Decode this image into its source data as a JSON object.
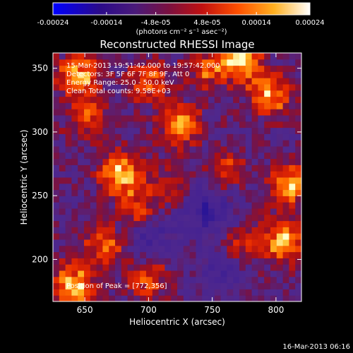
{
  "chart_data": {
    "type": "heatmap",
    "title": "Reconstructed RHESSI Image",
    "xlabel": "Heliocentric X (arcsec)",
    "ylabel": "Heliocentric Y (arcsec)",
    "xlim": [
      625,
      820
    ],
    "ylim": [
      167,
      362
    ],
    "x_ticks": [
      650,
      700,
      750,
      800
    ],
    "y_ticks": [
      200,
      250,
      300,
      350
    ],
    "colorbar": {
      "range": [
        -0.00024,
        0.00024
      ],
      "tick_values": [
        -0.00024,
        -0.00014,
        -4.8e-05,
        4.8e-05,
        0.00014,
        0.00024
      ],
      "tick_labels": [
        "-0.00024",
        "-0.00014",
        "-4.8e-05",
        "4.8e-05",
        "0.00014",
        "0.00024"
      ],
      "units_label": "(photons cm⁻² s⁻¹ asec⁻²)"
    },
    "info_lines": [
      "15-Mar-2013 19:51:42.000 to 19:57:42.000",
      "Detectors: 3F 5F 6F 7F 8F 9F, Att 0",
      "Energy Range: 25.0 - 50.0 keV",
      "Clean    Total counts: 9.58E+03"
    ],
    "peak_label": "Position of Peak = [772,356]",
    "peak": [
      772,
      356
    ],
    "bright_regions": [
      {
        "x": 645,
        "y": 345,
        "level": 0.85
      },
      {
        "x": 652,
        "y": 310,
        "level": 0.55
      },
      {
        "x": 700,
        "y": 340,
        "level": 0.6
      },
      {
        "x": 725,
        "y": 305,
        "level": 0.75
      },
      {
        "x": 678,
        "y": 268,
        "level": 0.9
      },
      {
        "x": 690,
        "y": 240,
        "level": 0.55
      },
      {
        "x": 665,
        "y": 210,
        "level": 0.6
      },
      {
        "x": 640,
        "y": 180,
        "level": 0.95
      },
      {
        "x": 700,
        "y": 185,
        "level": 0.5
      },
      {
        "x": 772,
        "y": 356,
        "level": 1.0
      },
      {
        "x": 795,
        "y": 330,
        "level": 0.8
      },
      {
        "x": 812,
        "y": 260,
        "level": 0.85
      },
      {
        "x": 805,
        "y": 215,
        "level": 0.9
      },
      {
        "x": 770,
        "y": 210,
        "level": 0.5
      },
      {
        "x": 760,
        "y": 270,
        "level": 0.45
      },
      {
        "x": 745,
        "y": 350,
        "level": 0.5
      },
      {
        "x": 715,
        "y": 255,
        "level": 0.4
      }
    ],
    "negative_regions": [
      {
        "x": 745,
        "y": 240,
        "level": 0.5
      },
      {
        "x": 700,
        "y": 220,
        "level": 0.35
      },
      {
        "x": 760,
        "y": 195,
        "level": 0.35
      }
    ]
  },
  "footer": {
    "timestamp": "16-Mar-2013 06:16"
  },
  "colors": {
    "background": "#000000",
    "text": "#ffffff",
    "colormap": [
      "#0000ff",
      "#3a1a8a",
      "#5a2a9a",
      "#7a1a3a",
      "#c01010",
      "#ff5500",
      "#ffb020",
      "#ffffa0",
      "#ffffff"
    ]
  }
}
